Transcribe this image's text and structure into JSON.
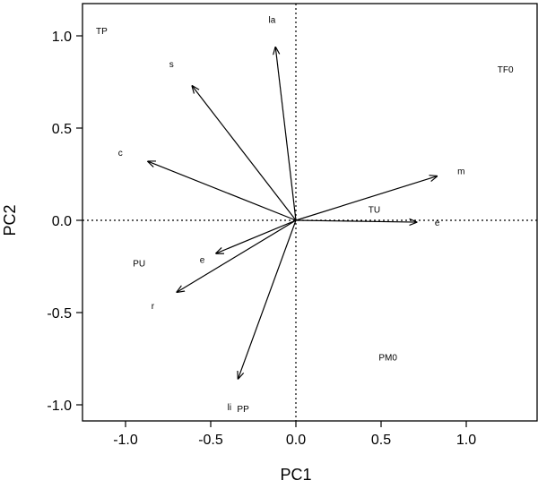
{
  "chart_data": {
    "type": "biplot",
    "title": "",
    "xlabel": "PC1",
    "ylabel": "PC2",
    "xlim": [
      -1.2,
      1.4
    ],
    "ylim": [
      -1.1,
      1.17
    ],
    "x_ticks": [
      {
        "value": -1.0,
        "label": "-1.0"
      },
      {
        "value": -0.5,
        "label": "-0.5"
      },
      {
        "value": 0.0,
        "label": "0.0"
      },
      {
        "value": 0.5,
        "label": "0.5"
      },
      {
        "value": 1.0,
        "label": "1.0"
      }
    ],
    "y_ticks": [
      {
        "value": -1.0,
        "label": "-1.0"
      },
      {
        "value": -0.5,
        "label": "-0.5"
      },
      {
        "value": 0.0,
        "label": "0.0"
      },
      {
        "value": 0.5,
        "label": "0.5"
      },
      {
        "value": 1.0,
        "label": "1.0"
      }
    ],
    "reference_lines": {
      "x": 0,
      "y": 0,
      "style": "dotted"
    },
    "grid": false,
    "loadings": [
      {
        "label": "la",
        "x": -0.12,
        "y": 0.94,
        "label_x": -0.14,
        "label_y": 1.09
      },
      {
        "label": "s",
        "x": -0.61,
        "y": 0.73,
        "label_x": -0.73,
        "label_y": 0.85
      },
      {
        "label": "c",
        "x": -0.87,
        "y": 0.32,
        "label_x": -1.03,
        "label_y": 0.37
      },
      {
        "label": "m",
        "x": 0.83,
        "y": 0.24,
        "label_x": 0.97,
        "label_y": 0.27
      },
      {
        "label": "e",
        "x": 0.71,
        "y": -0.01,
        "label_x": 0.83,
        "label_y": -0.01
      },
      {
        "label": "e",
        "x": -0.47,
        "y": -0.18,
        "label_x": -0.55,
        "label_y": -0.21
      },
      {
        "label": "r",
        "x": -0.7,
        "y": -0.39,
        "label_x": -0.84,
        "label_y": -0.46
      },
      {
        "label": "li",
        "x": -0.34,
        "y": -0.86,
        "label_x": -0.39,
        "label_y": -1.01
      }
    ],
    "observations": [
      {
        "label": "TP",
        "x": -1.14,
        "y": 1.03
      },
      {
        "label": "TF0",
        "x": 1.23,
        "y": 0.82
      },
      {
        "label": "TU",
        "x": 0.46,
        "y": 0.06
      },
      {
        "label": "PU",
        "x": -0.92,
        "y": -0.23
      },
      {
        "label": "PM0",
        "x": 0.54,
        "y": -0.74
      },
      {
        "label": "PP",
        "x": -0.31,
        "y": -1.02
      }
    ]
  }
}
